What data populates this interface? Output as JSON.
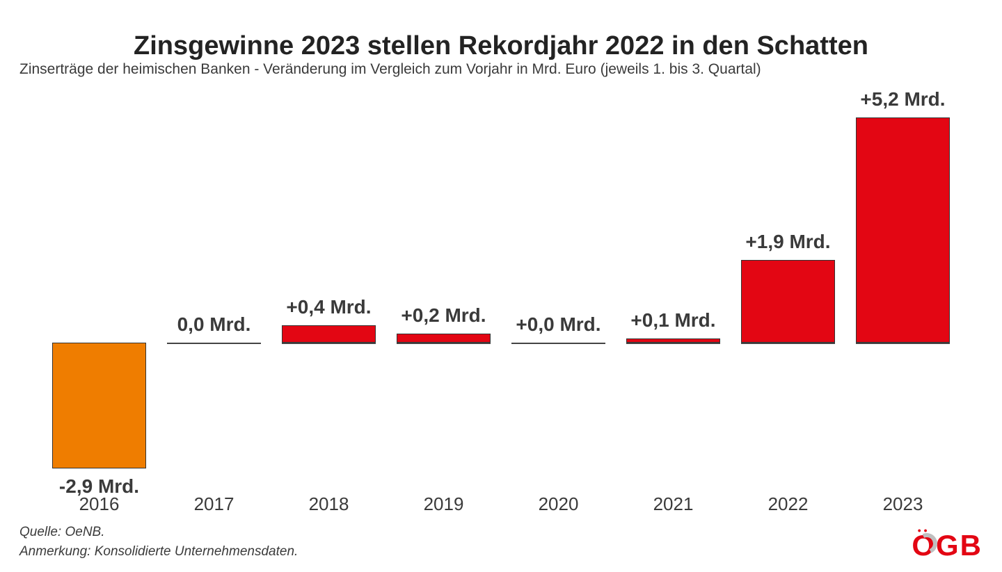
{
  "title": "Zinsgewinne 2023 stellen Rekordjahr 2022 in den Schatten",
  "subtitle": "Zinserträge der heimischen Banken - Veränderung im Vergleich zum Vorjahr in Mrd. Euro (jeweils 1. bis 3. Quartal)",
  "source_line": "Quelle: OeNB.",
  "note_line": "Anmerkung: Konsolidierte Unternehmensdaten.",
  "logo": {
    "text": "OGB",
    "color": "#e30613",
    "accent_gray": "#bfbfbf"
  },
  "chart": {
    "type": "bar",
    "background_color": "#ffffff",
    "positive_color": "#e30613",
    "negative_color": "#ef7d00",
    "bar_border_color": "#333333",
    "baseline_color": "#444444",
    "label_color": "#3a3a3a",
    "title_fontsize": 38,
    "subtitle_fontsize": 21,
    "value_label_fontsize": 28,
    "category_label_fontsize": 26,
    "footer_fontsize": 19,
    "ymin": -3.0,
    "ymax": 5.5,
    "bar_width_ratio": 0.82,
    "categories": [
      "2016",
      "2017",
      "2018",
      "2019",
      "2020",
      "2021",
      "2022",
      "2023"
    ],
    "values": [
      -2.9,
      0.0,
      0.4,
      0.2,
      0.0,
      0.1,
      1.9,
      5.2
    ],
    "value_labels": [
      "-2,9 Mrd.",
      "0,0 Mrd.",
      "+0,4 Mrd.",
      "+0,2 Mrd.",
      "+0,0 Mrd.",
      "+0,1 Mrd.",
      "+1,9 Mrd.",
      "+5,2 Mrd."
    ]
  }
}
